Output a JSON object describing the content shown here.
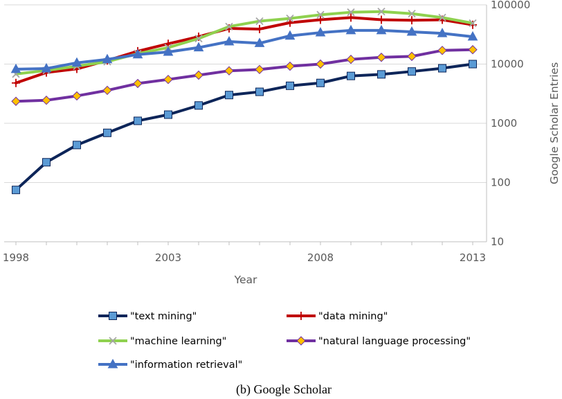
{
  "chart_data": {
    "type": "line",
    "title": "",
    "xlabel": "Year",
    "ylabel": "Google Scholar Entries",
    "yscale": "log",
    "ylim": [
      10,
      100000
    ],
    "xlim": [
      1998,
      2013
    ],
    "x_tick_labels": [
      "1998",
      "2003",
      "2008",
      "2013"
    ],
    "y_tick_labels": [
      "10",
      "100",
      "1000",
      "10000",
      "100000"
    ],
    "grid": "horizontal",
    "legend_position": "bottom",
    "x": [
      1998,
      1999,
      2000,
      2001,
      2002,
      2003,
      2004,
      2005,
      2006,
      2007,
      2008,
      2009,
      2010,
      2011,
      2012,
      2013
    ],
    "series": [
      {
        "name": "\"text mining\"",
        "color": "#0d2559",
        "marker": "square",
        "marker_fill": "#5b9bd5",
        "values": [
          75,
          220,
          430,
          690,
          1100,
          1400,
          2000,
          3000,
          3400,
          4300,
          4800,
          6300,
          6700,
          7500,
          8500,
          10000
        ]
      },
      {
        "name": "\"data mining\"",
        "color": "#c00000",
        "marker": "plus",
        "values": [
          4800,
          7200,
          8300,
          11500,
          16500,
          22000,
          29000,
          40000,
          39000,
          50000,
          56000,
          61000,
          56000,
          55000,
          56000,
          46000
        ]
      },
      {
        "name": "\"machine learning\"",
        "color": "#8fd14f",
        "marker": "x",
        "marker_color": "#a6a6a6",
        "values": [
          6800,
          7800,
          9200,
          11000,
          15000,
          19000,
          27000,
          43000,
          53000,
          59000,
          68000,
          75000,
          77000,
          71000,
          61000,
          49000
        ]
      },
      {
        "name": "\"natural language processing\"",
        "color": "#7030a0",
        "marker": "diamond",
        "marker_fill": "#ffc000",
        "values": [
          2350,
          2450,
          2900,
          3600,
          4700,
          5500,
          6500,
          7700,
          8100,
          9200,
          10000,
          12000,
          13000,
          13500,
          17000,
          17500
        ]
      },
      {
        "name": "\"information retrieval\"",
        "color": "#4472c4",
        "marker": "triangle",
        "values": [
          8200,
          8400,
          10500,
          12000,
          14500,
          16000,
          19000,
          24000,
          22500,
          30000,
          34000,
          37000,
          37000,
          35000,
          33000,
          29000
        ]
      }
    ]
  },
  "caption": "(b) Google Scholar"
}
